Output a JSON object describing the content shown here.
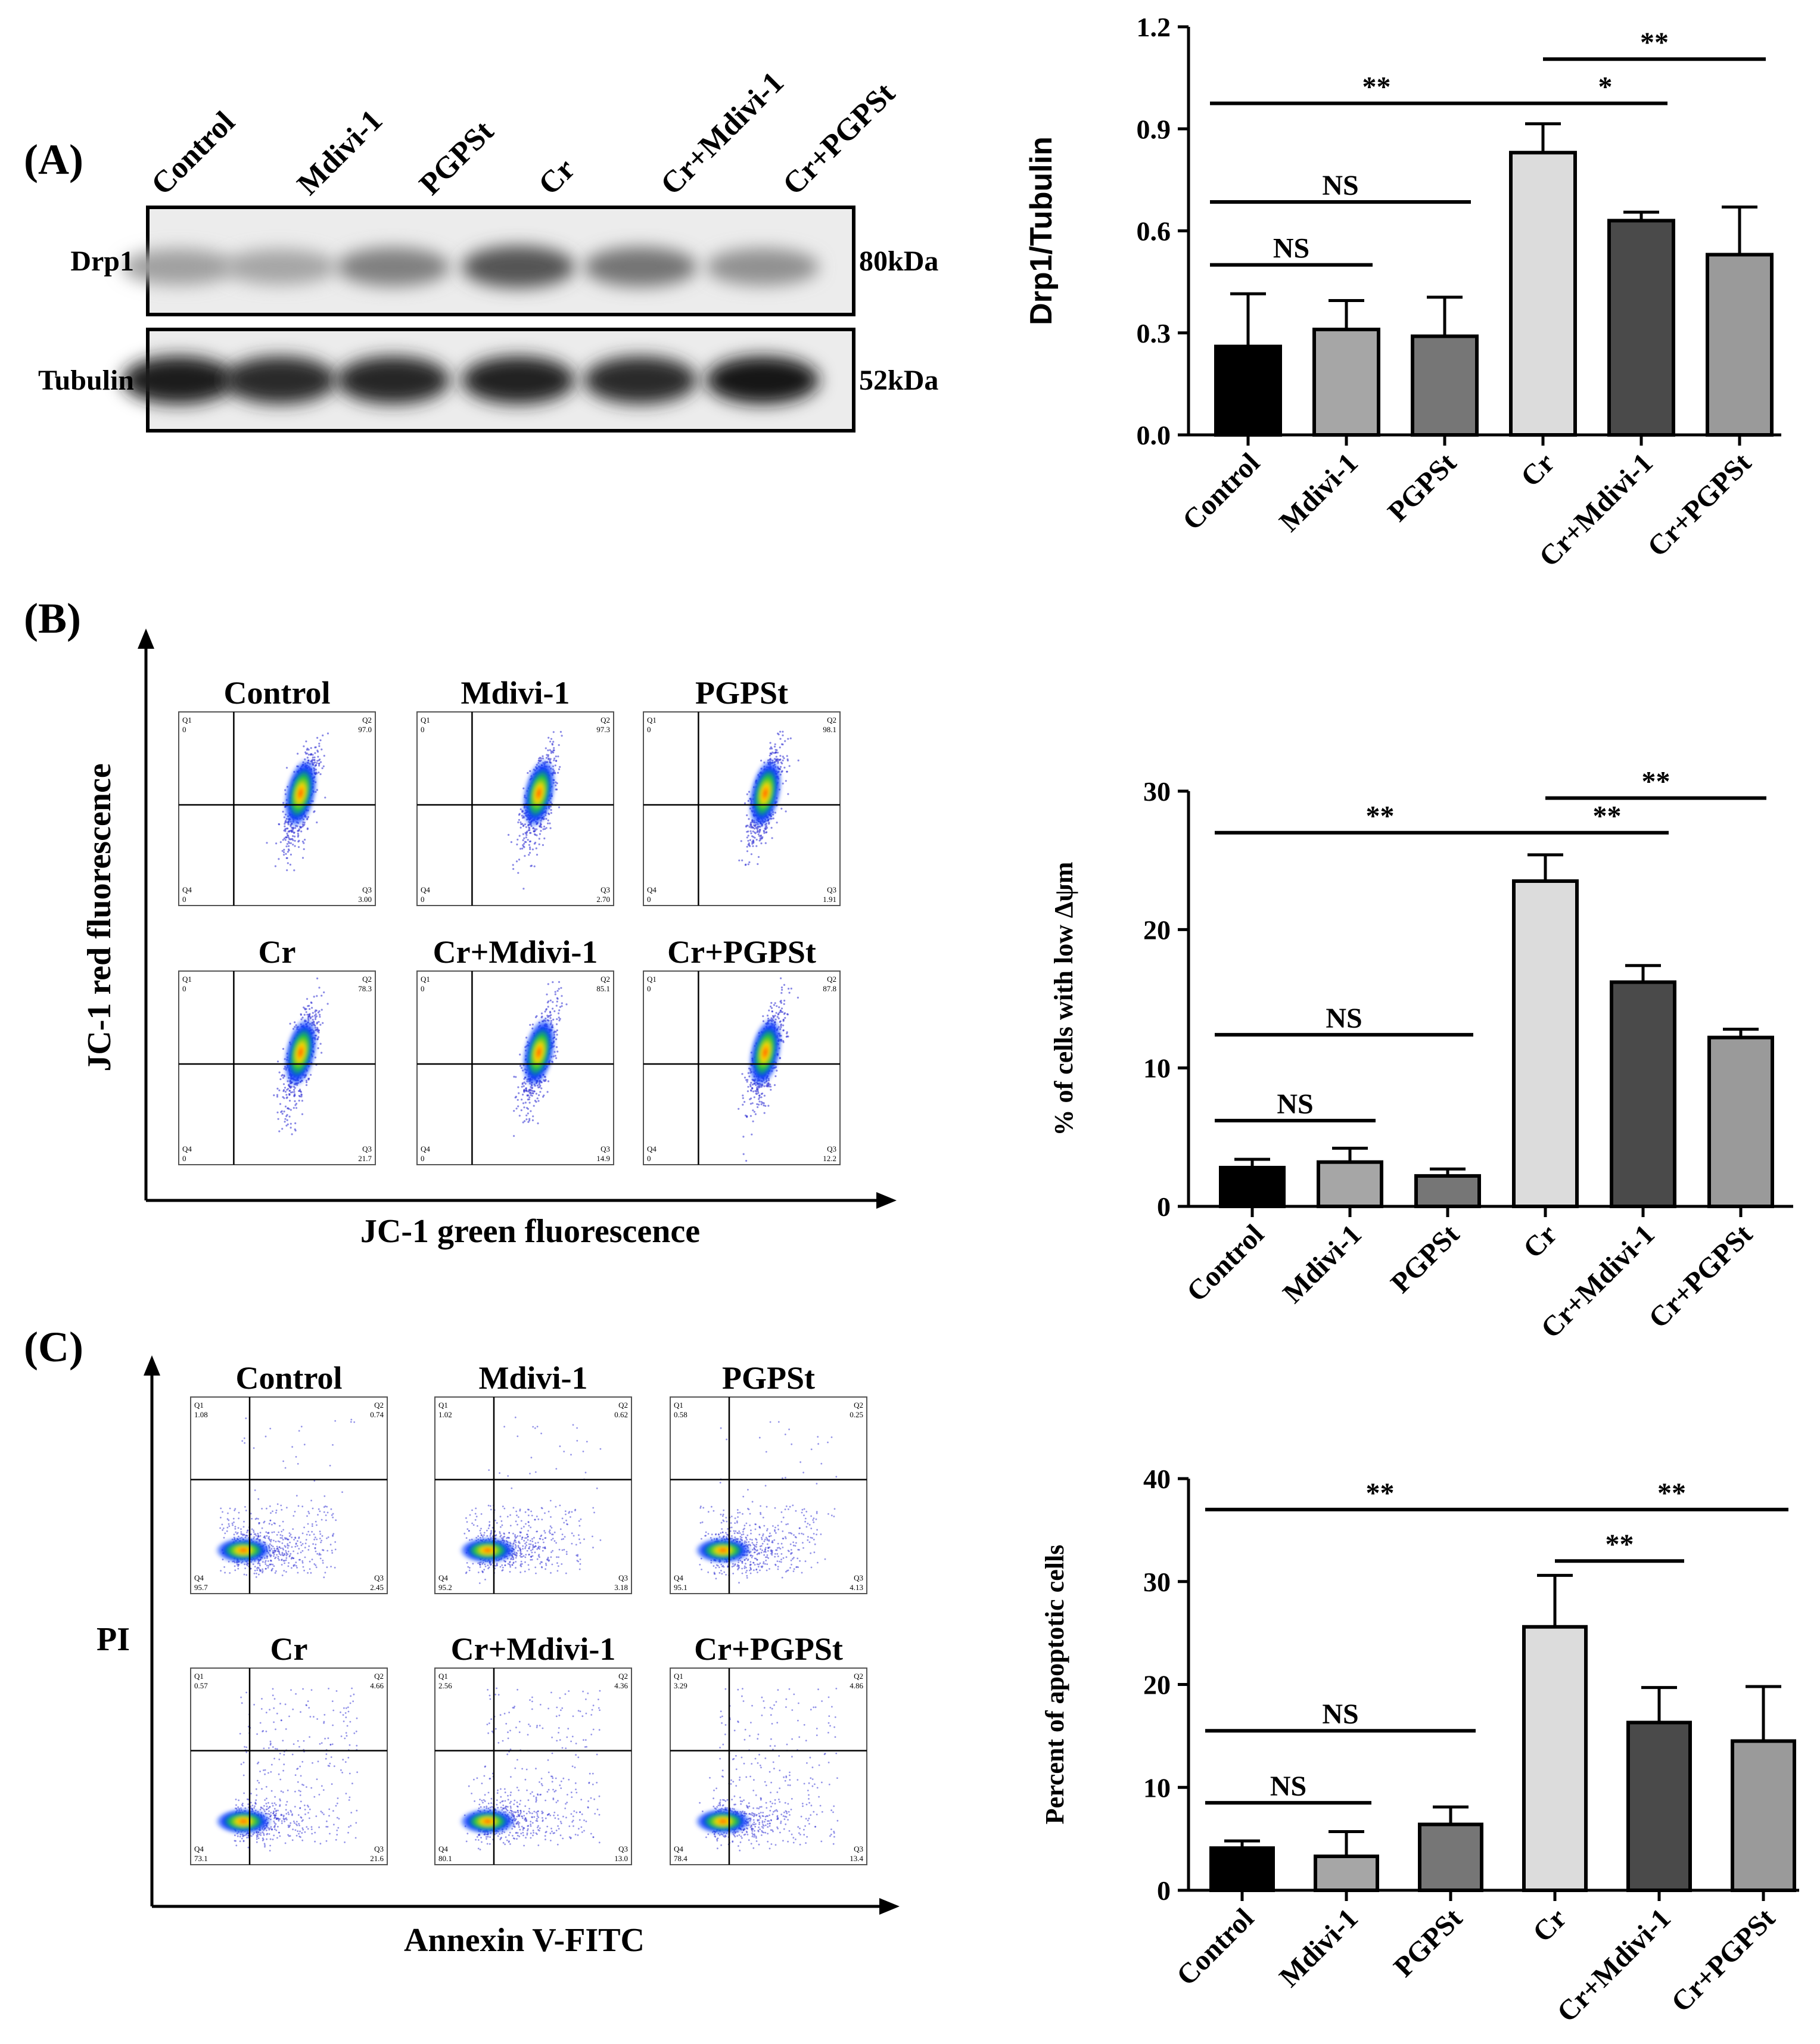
{
  "panels": {
    "A": {
      "label": "(A)",
      "western": {
        "lanes": [
          "Control",
          "Mdivi-1",
          "PGPSt",
          "Cr",
          "Cr+Mdivi-1",
          "Cr+PGPSt"
        ],
        "rows": [
          {
            "name": "Drp1",
            "size": "80kDa",
            "intensity": [
              0.35,
              0.32,
              0.5,
              0.7,
              0.55,
              0.42
            ]
          },
          {
            "name": "Tubulin",
            "size": "52kDa",
            "intensity": [
              0.95,
              0.9,
              0.92,
              0.93,
              0.9,
              1.0
            ]
          }
        ]
      }
    },
    "B": {
      "label": "(B)",
      "flow": {
        "ylabel": "JC-1 red fluorescence",
        "xlabel": "JC-1 green fluorescence",
        "plots": [
          {
            "title": "Control",
            "q1": "Q1",
            "q1v": "0",
            "q2": "Q2",
            "q2v": "97.0",
            "q3": "Q3",
            "q3v": "3.00",
            "q4": "Q4",
            "q4v": "0"
          },
          {
            "title": "Mdivi-1",
            "q1": "Q1",
            "q1v": "0",
            "q2": "Q2",
            "q2v": "97.3",
            "q3": "Q3",
            "q3v": "2.70",
            "q4": "Q4",
            "q4v": "0"
          },
          {
            "title": "PGPSt",
            "q1": "Q1",
            "q1v": "0",
            "q2": "Q2",
            "q2v": "98.1",
            "q3": "Q3",
            "q3v": "1.91",
            "q4": "Q4",
            "q4v": "0"
          },
          {
            "title": "Cr",
            "q1": "Q1",
            "q1v": "0",
            "q2": "Q2",
            "q2v": "78.3",
            "q3": "Q3",
            "q3v": "21.7",
            "q4": "Q4",
            "q4v": "0"
          },
          {
            "title": "Cr+Mdivi-1",
            "q1": "Q1",
            "q1v": "0",
            "q2": "Q2",
            "q2v": "85.1",
            "q3": "Q3",
            "q3v": "14.9",
            "q4": "Q4",
            "q4v": "0"
          },
          {
            "title": "Cr+PGPSt",
            "q1": "Q1",
            "q1v": "0",
            "q2": "Q2",
            "q2v": "87.8",
            "q3": "Q3",
            "q3v": "12.2",
            "q4": "Q4",
            "q4v": "0"
          }
        ]
      }
    },
    "C": {
      "label": "(C)",
      "flow": {
        "ylabel": "PI",
        "xlabel": "Annexin V-FITC",
        "plots": [
          {
            "title": "Control",
            "q1": "Q1",
            "q1v": "1.08",
            "q2": "Q2",
            "q2v": "0.74",
            "q3": "Q3",
            "q3v": "2.45",
            "q4": "Q4",
            "q4v": "95.7"
          },
          {
            "title": "Mdivi-1",
            "q1": "Q1",
            "q1v": "1.02",
            "q2": "Q2",
            "q2v": "0.62",
            "q3": "Q3",
            "q3v": "3.18",
            "q4": "Q4",
            "q4v": "95.2"
          },
          {
            "title": "PGPSt",
            "q1": "Q1",
            "q1v": "0.58",
            "q2": "Q2",
            "q2v": "0.25",
            "q3": "Q3",
            "q3v": "4.13",
            "q4": "Q4",
            "q4v": "95.1"
          },
          {
            "title": "Cr",
            "q1": "Q1",
            "q1v": "0.57",
            "q2": "Q2",
            "q2v": "4.66",
            "q3": "Q3",
            "q3v": "21.6",
            "q4": "Q4",
            "q4v": "73.1"
          },
          {
            "title": "Cr+Mdivi-1",
            "q1": "Q1",
            "q1v": "2.56",
            "q2": "Q2",
            "q2v": "4.36",
            "q3": "Q3",
            "q3v": "13.0",
            "q4": "Q4",
            "q4v": "80.1"
          },
          {
            "title": "Cr+PGPSt",
            "q1": "Q1",
            "q1v": "3.29",
            "q2": "Q2",
            "q2v": "4.86",
            "q3": "Q3",
            "q3v": "13.4",
            "q4": "Q4",
            "q4v": "78.4"
          }
        ]
      }
    }
  },
  "chart_data": [
    {
      "type": "bar",
      "id": "A",
      "title": "",
      "categories": [
        "Control",
        "Mdivi-1",
        "PGPSt",
        "Cr",
        "Cr+Mdivi-1",
        "Cr+PGPSt"
      ],
      "values": [
        0.26,
        0.31,
        0.29,
        0.83,
        0.63,
        0.53
      ],
      "errors": [
        0.155,
        0.085,
        0.115,
        0.085,
        0.025,
        0.14
      ],
      "colors": [
        "#000000",
        "#a6a6a6",
        "#767676",
        "#dcdcdc",
        "#4a4a4a",
        "#9a9a9a"
      ],
      "ylabel": "Drp1/Tubulin",
      "ylim": [
        0,
        1.2
      ],
      "yticks": [
        "0.0",
        "0.3",
        "0.6",
        "0.9",
        "1.2"
      ],
      "tickvals": [
        0,
        0.3,
        0.6,
        0.9,
        1.2
      ],
      "brackets": [
        {
          "from": 0,
          "to": 3,
          "label": "**",
          "y": 0.975
        },
        {
          "from": 3,
          "to": 5,
          "label": "**",
          "y": 1.105
        },
        {
          "from": 3,
          "to": 4,
          "label": "*",
          "y": 0.975
        },
        {
          "from": 0,
          "to": 2,
          "label": "NS",
          "y": 0.685
        },
        {
          "from": 0,
          "to": 1,
          "label": "NS",
          "y": 0.5
        }
      ]
    },
    {
      "type": "bar",
      "id": "B",
      "title": "",
      "categories": [
        "Control",
        "Mdivi-1",
        "PGPSt",
        "Cr",
        "Cr+Mdivi-1",
        "Cr+PGPSt"
      ],
      "values": [
        2.8,
        3.2,
        2.2,
        23.5,
        16.2,
        12.2
      ],
      "errors": [
        0.6,
        1.0,
        0.5,
        1.9,
        1.2,
        0.6
      ],
      "colors": [
        "#000000",
        "#a6a6a6",
        "#767676",
        "#dcdcdc",
        "#4a4a4a",
        "#9a9a9a"
      ],
      "ylabel": "% of cells with low Δψm",
      "ylim": [
        0,
        30
      ],
      "yticks": [
        "0",
        "10",
        "20",
        "30"
      ],
      "tickvals": [
        0,
        10,
        20,
        30
      ],
      "brackets": [
        {
          "from": 0,
          "to": 3,
          "label": "**",
          "y": 27.0
        },
        {
          "from": 3,
          "to": 5,
          "label": "**",
          "y": 29.5
        },
        {
          "from": 3,
          "to": 4,
          "label": "**",
          "y": 27.0
        },
        {
          "from": 0,
          "to": 2,
          "label": "NS",
          "y": 12.4
        },
        {
          "from": 0,
          "to": 1,
          "label": "NS",
          "y": 6.2
        }
      ]
    },
    {
      "type": "bar",
      "id": "C",
      "title": "",
      "categories": [
        "Control",
        "Mdivi-1",
        "PGPSt",
        "Cr",
        "Cr+Mdivi-1",
        "Cr+PGPSt"
      ],
      "values": [
        4.1,
        3.3,
        6.4,
        25.6,
        16.3,
        14.5
      ],
      "errors": [
        0.7,
        2.4,
        1.7,
        5.0,
        3.4,
        5.3
      ],
      "colors": [
        "#000000",
        "#a6a6a6",
        "#767676",
        "#dcdcdc",
        "#4a4a4a",
        "#9a9a9a"
      ],
      "ylabel": "Percent of apoptotic  cells",
      "ylim": [
        0,
        40
      ],
      "yticks": [
        "0",
        "10",
        "20",
        "30",
        "40"
      ],
      "tickvals": [
        0,
        10,
        20,
        30,
        40
      ],
      "brackets": [
        {
          "from": 0,
          "to": 3,
          "label": "**",
          "y": 37.0
        },
        {
          "from": 3,
          "to": 5,
          "label": "**",
          "y": 37.0
        },
        {
          "from": 3,
          "to": 4,
          "label": "**",
          "y": 32.0
        },
        {
          "from": 0,
          "to": 2,
          "label": "NS",
          "y": 15.5
        },
        {
          "from": 0,
          "to": 1,
          "label": "NS",
          "y": 8.5
        }
      ]
    }
  ]
}
